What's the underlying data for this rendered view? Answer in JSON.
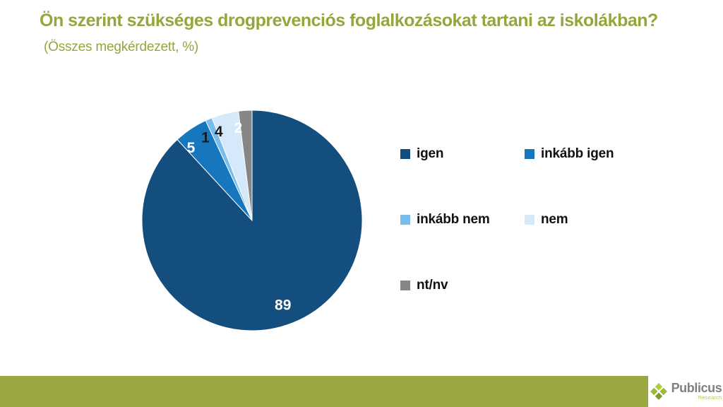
{
  "slide": {
    "title_question": "Ön szerint szükséges drogprevenciós foglalkozásokat tartani az iskolákban?",
    "title_note": "(Összes megkérdezett, %)"
  },
  "chart_data": {
    "type": "pie",
    "title": "Ön szerint szükséges drogprevenciós foglalkozásokat tartani az iskolákban?",
    "subtitle": "(Összes megkérdezett, %)",
    "unit": "%",
    "categories": [
      "igen",
      "inkább igen",
      "inkább nem",
      "nem",
      "nt/nv"
    ],
    "values": [
      89,
      5,
      1,
      4,
      2
    ],
    "colors": [
      "#144e7e",
      "#1777be",
      "#79bcee",
      "#d6e9fa",
      "#868686"
    ],
    "data_label_colors": [
      "#ffffff",
      "#ffffff",
      "#1a1a1a",
      "#1a1a1a",
      "#ffffff"
    ],
    "data_labels": true,
    "start_angle_deg": 0,
    "direction": "clockwise",
    "legend_position": "right",
    "legend_text_color": "#111111",
    "background": "#ffffff"
  },
  "footer": {
    "accent_bar_color": "#9aa640",
    "brand": "Publicus",
    "brand_sub": "Research",
    "logo_diamond_colors": [
      "#b2cc3f",
      "#9cb93a",
      "#9cb93a",
      "#7e9c33"
    ]
  }
}
